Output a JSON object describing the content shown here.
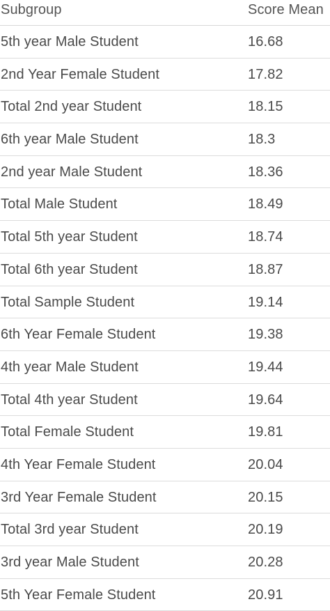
{
  "chart_data": {
    "type": "table",
    "columns": [
      "Subgroup",
      "Score Mean"
    ],
    "rows": [
      {
        "subgroup": "5th year Male Student",
        "score": "16.68"
      },
      {
        "subgroup": "2nd Year Female Student",
        "score": "17.82"
      },
      {
        "subgroup": "Total 2nd year Student",
        "score": "18.15"
      },
      {
        "subgroup": "6th year Male Student",
        "score": "18.3"
      },
      {
        "subgroup": "2nd year Male Student",
        "score": "18.36"
      },
      {
        "subgroup": "Total Male Student",
        "score": "18.49"
      },
      {
        "subgroup": "Total 5th year Student",
        "score": "18.74"
      },
      {
        "subgroup": "Total 6th year Student",
        "score": "18.87"
      },
      {
        "subgroup": "Total Sample Student",
        "score": "19.14"
      },
      {
        "subgroup": "6th Year Female Student",
        "score": "19.38"
      },
      {
        "subgroup": "4th year Male Student",
        "score": "19.44"
      },
      {
        "subgroup": "Total 4th year Student",
        "score": "19.64"
      },
      {
        "subgroup": "Total Female Student",
        "score": "19.81"
      },
      {
        "subgroup": "4th Year Female Student",
        "score": "20.04"
      },
      {
        "subgroup": "3rd Year Female Student",
        "score": "20.15"
      },
      {
        "subgroup": "Total 3rd year Student",
        "score": "20.19"
      },
      {
        "subgroup": "3rd year Male Student",
        "score": "20.28"
      },
      {
        "subgroup": "5th Year Female Student",
        "score": "20.91"
      }
    ]
  }
}
